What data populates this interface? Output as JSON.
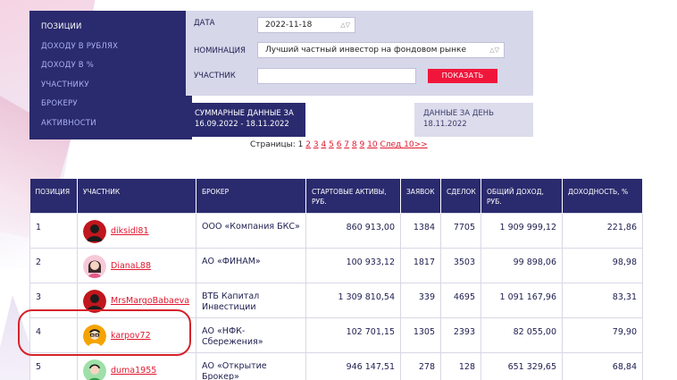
{
  "menu": {
    "items": [
      {
        "label": "ПОЗИЦИИ",
        "active": true
      },
      {
        "label": "ДОХОДУ В РУБЛЯХ",
        "active": false
      },
      {
        "label": "ДОХОДУ В %",
        "active": false
      },
      {
        "label": "УЧАСТНИКУ",
        "active": false
      },
      {
        "label": "БРОКЕРУ",
        "active": false
      },
      {
        "label": "АКТИВНОСТИ",
        "active": false
      }
    ]
  },
  "filters": {
    "date_label": "ДАТА",
    "date_value": "2022-11-18",
    "nomination_label": "НОМИНАЦИЯ",
    "nomination_value": "Лучший частный инвестор на фондовом рынке",
    "participant_label": "УЧАСТНИК",
    "participant_value": "",
    "show_button": "ПОКАЗАТЬ"
  },
  "tabs": {
    "summary_title": "СУММАРНЫЕ ДАННЫЕ ЗА",
    "summary_period": "16.09.2022 - 18.11.2022",
    "day_title": "ДАННЫЕ ЗА ДЕНЬ",
    "day_date": "18.11.2022"
  },
  "pagination": {
    "label": "Страницы:",
    "current": "1",
    "pages": [
      "2",
      "3",
      "4",
      "5",
      "6",
      "7",
      "8",
      "9",
      "10"
    ],
    "next": "След 10>>"
  },
  "table": {
    "headers": [
      "ПОЗИЦИЯ",
      "УЧАСТНИК",
      "БРОКЕР",
      "СТАРТОВЫЕ АКТИВЫ, РУБ.",
      "ЗАЯВОК",
      "СДЕЛОК",
      "ОБЩИЙ ДОХОД, РУБ.",
      "ДОХОДНОСТЬ, %"
    ],
    "rows": [
      {
        "position": "1",
        "user": "diksidl81",
        "avatar": "dark-red",
        "broker": "ООО «Компания БКС»",
        "assets": "860 913,00",
        "orders": "1384",
        "deals": "7705",
        "income": "1 909 999,12",
        "yield": "221,86"
      },
      {
        "position": "2",
        "user": "DianaL88",
        "avatar": "pink-girl",
        "broker": "АО «ФИНАМ»",
        "assets": "100 933,12",
        "orders": "1817",
        "deals": "3503",
        "income": "99 898,06",
        "yield": "98,98"
      },
      {
        "position": "3",
        "user": "MrsMargoBabaeva",
        "avatar": "dark-red",
        "broker": "ВТБ Капитал Инвестиции",
        "assets": "1 309 810,54",
        "orders": "339",
        "deals": "4695",
        "income": "1 091 167,96",
        "yield": "83,31"
      },
      {
        "position": "4",
        "user": "karpov72",
        "avatar": "orange-glasses",
        "broker": "АО «НФК-Сбережения»",
        "assets": "102 701,15",
        "orders": "1305",
        "deals": "2393",
        "income": "82 055,00",
        "yield": "79,90"
      },
      {
        "position": "5",
        "user": "duma1955",
        "avatar": "green-person",
        "broker": "АО «Открытие Брокер»",
        "assets": "946 147,51",
        "orders": "278",
        "deals": "128",
        "income": "651 329,65",
        "yield": "68,84"
      }
    ]
  },
  "colors": {
    "navy": "#2a2a6e",
    "accent_red": "#f0163b",
    "link_red": "#e0182f",
    "panel": "#d7d7ea"
  }
}
